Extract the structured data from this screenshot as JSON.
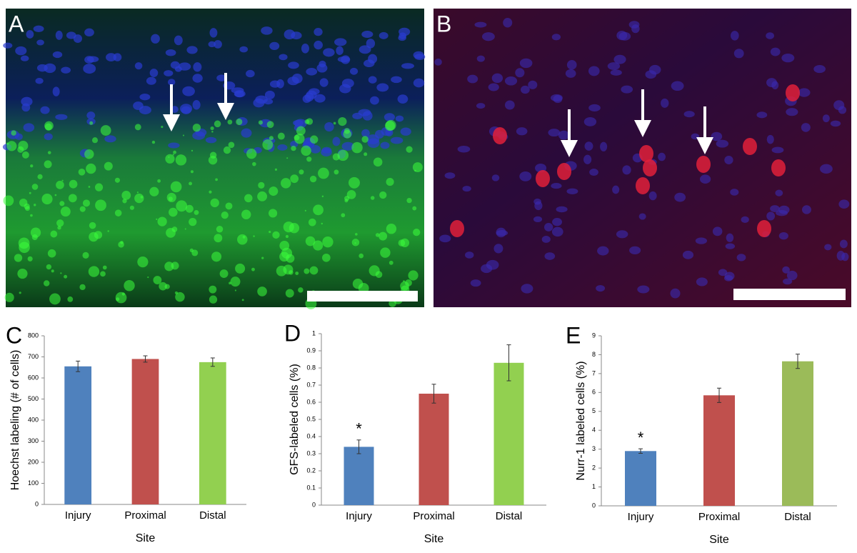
{
  "figure": {
    "panels": [
      "A",
      "B"
    ]
  },
  "chart_data": [
    {
      "type": "bar",
      "label": "C",
      "ylabel": "Hoechst labeling (# of cells)",
      "xlabel": "Site",
      "categories": [
        "Injury",
        "Proximal",
        "Distal"
      ],
      "values": [
        655,
        690,
        675
      ],
      "errors": [
        25,
        15,
        20
      ],
      "colors": [
        "#4f81bd",
        "#c0504d",
        "#92d050"
      ],
      "ylim": [
        0,
        800
      ],
      "yticks": [
        0,
        100,
        200,
        300,
        400,
        500,
        600,
        700,
        800
      ]
    },
    {
      "type": "bar",
      "label": "D",
      "ylabel": "GFS-labeled cells (%)",
      "xlabel": "Site",
      "categories": [
        "Injury",
        "Proximal",
        "Distal"
      ],
      "values": [
        0.34,
        0.65,
        0.83
      ],
      "errors": [
        0.04,
        0.055,
        0.105
      ],
      "colors": [
        "#4f81bd",
        "#c0504d",
        "#92d050"
      ],
      "annotation": "*",
      "ylim": [
        0,
        1
      ],
      "yticks": [
        0,
        0.1,
        0.2,
        0.3,
        0.4,
        0.5,
        0.6,
        0.7,
        0.8,
        0.9,
        1
      ]
    },
    {
      "type": "bar",
      "label": "E",
      "ylabel": "Nurr-1 labeled cells (%)",
      "xlabel": "Site",
      "categories": [
        "Injury",
        "Proximal",
        "Distal"
      ],
      "values": [
        2.9,
        5.85,
        7.65
      ],
      "errors": [
        0.12,
        0.38,
        0.38
      ],
      "colors": [
        "#4f81bd",
        "#c0504d",
        "#9bbb59"
      ],
      "annotation": "*",
      "ylim": [
        0,
        9
      ],
      "yticks": [
        0,
        1,
        2,
        3,
        4,
        5,
        6,
        7,
        8,
        9
      ]
    }
  ]
}
